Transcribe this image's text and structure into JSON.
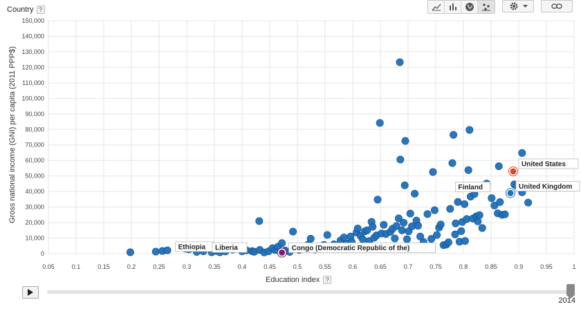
{
  "header": {
    "color_by_label": "Country",
    "help": "?"
  },
  "toolbar": {
    "chart_types": [
      {
        "name": "line-chart-icon",
        "active": false
      },
      {
        "name": "bar-chart-icon",
        "active": false
      },
      {
        "name": "map-icon",
        "active": false
      },
      {
        "name": "bubble-chart-icon",
        "active": true
      }
    ],
    "settings_icon": "gear-icon",
    "link_icon": "link-icon"
  },
  "timeline": {
    "year": "2014",
    "play_icon": "play-icon",
    "position": 1.0
  },
  "colors": {
    "dot": "#1f6fb8",
    "dot_stroke": "#0d4f8c",
    "us_highlight": "#d9472b",
    "congo_highlight": "#7a1f6e",
    "grid": "#e6e6e6"
  },
  "chart_data": {
    "type": "scatter",
    "xlabel": "Education index",
    "ylabel": "Gross national income (GNI) per capita (2011 PPP$)",
    "xlim": [
      0.05,
      1.0
    ],
    "ylim": [
      0,
      150000
    ],
    "xticks": [
      "0.05",
      "0.1",
      "0.15",
      "0.2",
      "0.25",
      "0.3",
      "0.35",
      "0.4",
      "0.45",
      "0.5",
      "0.55",
      "0.6",
      "0.65",
      "0.7",
      "0.75",
      "0.8",
      "0.85",
      "0.9",
      "0.95",
      "1"
    ],
    "yticks": [
      "0",
      "10,000",
      "20,000",
      "30,000",
      "40,000",
      "50,000",
      "60,000",
      "70,000",
      "80,000",
      "90,000",
      "100,000",
      "110,000",
      "120,000",
      "130,000",
      "140,000",
      "150,000"
    ],
    "grid": true,
    "labeled_points": [
      {
        "label": "Ethiopia",
        "x": 0.352,
        "y": 1400
      },
      {
        "label": "Liberia",
        "x": 0.415,
        "y": 800
      },
      {
        "label": "Congo (Democratic Republic of the)",
        "x": 0.472,
        "y": 700,
        "highlight": "congo"
      },
      {
        "label": "United States",
        "x": 0.89,
        "y": 53000,
        "highlight": "us"
      },
      {
        "label": "Finland",
        "x": 0.848,
        "y": 38500
      },
      {
        "label": "United Kingdom",
        "x": 0.885,
        "y": 39000,
        "highlight": "uk"
      }
    ],
    "points": [
      [
        0.198,
        900
      ],
      [
        0.244,
        1300
      ],
      [
        0.256,
        1700
      ],
      [
        0.265,
        2100
      ],
      [
        0.298,
        3200
      ],
      [
        0.304,
        2800
      ],
      [
        0.31,
        3600
      ],
      [
        0.318,
        1100
      ],
      [
        0.33,
        1500
      ],
      [
        0.345,
        900
      ],
      [
        0.353,
        1800
      ],
      [
        0.36,
        900
      ],
      [
        0.37,
        1400
      ],
      [
        0.383,
        2600
      ],
      [
        0.394,
        3400
      ],
      [
        0.4,
        1500
      ],
      [
        0.408,
        2100
      ],
      [
        0.418,
        1600
      ],
      [
        0.422,
        1200
      ],
      [
        0.432,
        2400
      ],
      [
        0.431,
        21000
      ],
      [
        0.44,
        800
      ],
      [
        0.448,
        1500
      ],
      [
        0.455,
        3500
      ],
      [
        0.46,
        2300
      ],
      [
        0.465,
        4500
      ],
      [
        0.472,
        6800
      ],
      [
        0.478,
        2000
      ],
      [
        0.486,
        1100
      ],
      [
        0.492,
        14200
      ],
      [
        0.503,
        2400
      ],
      [
        0.51,
        3500
      ],
      [
        0.52,
        6000
      ],
      [
        0.524,
        9600
      ],
      [
        0.532,
        2700
      ],
      [
        0.54,
        3600
      ],
      [
        0.548,
        5600
      ],
      [
        0.554,
        12000
      ],
      [
        0.56,
        4400
      ],
      [
        0.566,
        6000
      ],
      [
        0.572,
        3800
      ],
      [
        0.578,
        8500
      ],
      [
        0.584,
        10400
      ],
      [
        0.59,
        6500
      ],
      [
        0.596,
        11000
      ],
      [
        0.598,
        7600
      ],
      [
        0.603,
        3000
      ],
      [
        0.607,
        13700
      ],
      [
        0.609,
        16200
      ],
      [
        0.614,
        11500
      ],
      [
        0.618,
        9300
      ],
      [
        0.622,
        14400
      ],
      [
        0.626,
        15000
      ],
      [
        0.63,
        8200
      ],
      [
        0.634,
        20500
      ],
      [
        0.636,
        17300
      ],
      [
        0.639,
        10300
      ],
      [
        0.643,
        11800
      ],
      [
        0.645,
        34800
      ],
      [
        0.649,
        84200
      ],
      [
        0.652,
        13000
      ],
      [
        0.656,
        18600
      ],
      [
        0.66,
        12700
      ],
      [
        0.664,
        4600
      ],
      [
        0.668,
        14000
      ],
      [
        0.672,
        16100
      ],
      [
        0.676,
        9800
      ],
      [
        0.679,
        17800
      ],
      [
        0.683,
        22700
      ],
      [
        0.685,
        123300
      ],
      [
        0.686,
        60600
      ],
      [
        0.689,
        15000
      ],
      [
        0.692,
        19900
      ],
      [
        0.694,
        44000
      ],
      [
        0.695,
        72600
      ],
      [
        0.698,
        9300
      ],
      [
        0.701,
        14400
      ],
      [
        0.704,
        25800
      ],
      [
        0.707,
        17600
      ],
      [
        0.712,
        38600
      ],
      [
        0.715,
        21300
      ],
      [
        0.718,
        18000
      ],
      [
        0.722,
        11000
      ],
      [
        0.728,
        7400
      ],
      [
        0.735,
        25500
      ],
      [
        0.742,
        9500
      ],
      [
        0.745,
        52600
      ],
      [
        0.748,
        28000
      ],
      [
        0.752,
        12000
      ],
      [
        0.756,
        16800
      ],
      [
        0.759,
        18800
      ],
      [
        0.764,
        5500
      ],
      [
        0.769,
        5800
      ],
      [
        0.773,
        7300
      ],
      [
        0.776,
        28800
      ],
      [
        0.78,
        58300
      ],
      [
        0.782,
        76500
      ],
      [
        0.785,
        12400
      ],
      [
        0.786,
        19500
      ],
      [
        0.79,
        33300
      ],
      [
        0.793,
        7700
      ],
      [
        0.796,
        14500
      ],
      [
        0.798,
        20400
      ],
      [
        0.799,
        43700
      ],
      [
        0.802,
        31900
      ],
      [
        0.803,
        8200
      ],
      [
        0.806,
        22300
      ],
      [
        0.809,
        53800
      ],
      [
        0.811,
        79700
      ],
      [
        0.813,
        36700
      ],
      [
        0.817,
        22600
      ],
      [
        0.82,
        38400
      ],
      [
        0.823,
        24000
      ],
      [
        0.826,
        20800
      ],
      [
        0.829,
        24800
      ],
      [
        0.834,
        16500
      ],
      [
        0.837,
        42200
      ],
      [
        0.842,
        45100
      ],
      [
        0.851,
        35800
      ],
      [
        0.856,
        31000
      ],
      [
        0.862,
        26000
      ],
      [
        0.864,
        56300
      ],
      [
        0.866,
        33200
      ],
      [
        0.87,
        25000
      ],
      [
        0.875,
        25300
      ],
      [
        0.892,
        44600
      ],
      [
        0.897,
        43500
      ],
      [
        0.906,
        39500
      ],
      [
        0.906,
        64800
      ],
      [
        0.917,
        32900
      ],
      [
        0.925,
        43000
      ]
    ]
  }
}
